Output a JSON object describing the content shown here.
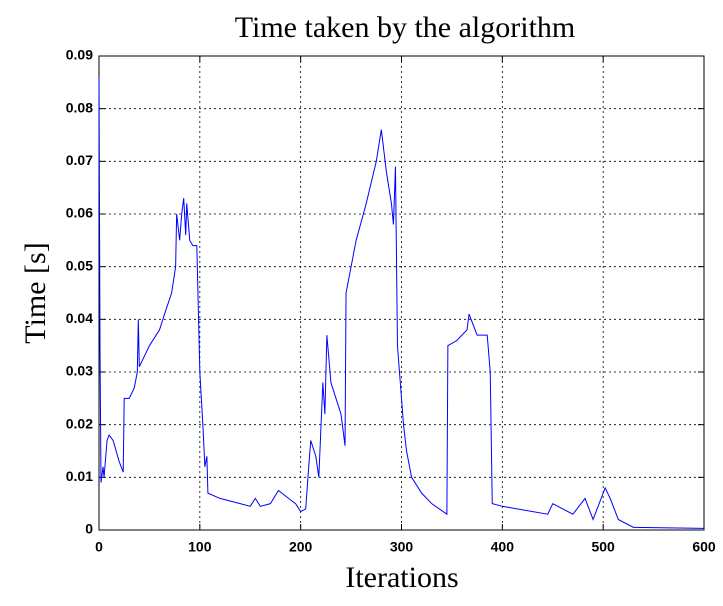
{
  "chart_data": {
    "type": "line",
    "title": "Time taken by the algorithm",
    "xlabel": "Iterations",
    "ylabel": "Time [s]",
    "x": [
      0,
      1,
      2,
      4,
      5,
      8,
      10,
      14,
      17,
      20,
      24,
      25,
      30,
      35,
      38,
      39,
      40,
      45,
      50,
      60,
      65,
      72,
      76,
      77,
      80,
      82,
      84,
      86,
      87,
      90,
      93,
      97,
      100,
      103,
      105,
      107,
      108,
      120,
      140,
      150,
      155,
      160,
      170,
      178,
      188,
      195,
      200,
      205,
      208,
      210,
      215,
      218,
      222,
      224,
      226,
      230,
      235,
      240,
      244,
      245,
      250,
      255,
      265,
      275,
      280,
      285,
      290,
      292,
      294,
      296,
      298,
      302,
      305,
      310,
      320,
      330,
      345,
      346,
      355,
      365,
      367,
      375,
      385,
      388,
      390,
      400,
      445,
      450,
      470,
      482,
      490,
      502,
      507,
      515,
      530,
      600
    ],
    "values": [
      0.086,
      0.034,
      0.009,
      0.012,
      0.01,
      0.017,
      0.018,
      0.017,
      0.015,
      0.013,
      0.011,
      0.025,
      0.025,
      0.027,
      0.03,
      0.04,
      0.031,
      0.033,
      0.035,
      0.038,
      0.041,
      0.045,
      0.05,
      0.06,
      0.055,
      0.06,
      0.063,
      0.056,
      0.062,
      0.055,
      0.054,
      0.054,
      0.03,
      0.02,
      0.012,
      0.014,
      0.007,
      0.006,
      0.005,
      0.0045,
      0.006,
      0.0045,
      0.005,
      0.0075,
      0.006,
      0.005,
      0.0035,
      0.004,
      0.012,
      0.017,
      0.014,
      0.01,
      0.028,
      0.022,
      0.037,
      0.028,
      0.025,
      0.022,
      0.016,
      0.045,
      0.05,
      0.055,
      0.062,
      0.07,
      0.076,
      0.068,
      0.062,
      0.058,
      0.069,
      0.035,
      0.03,
      0.02,
      0.015,
      0.01,
      0.007,
      0.005,
      0.003,
      0.035,
      0.036,
      0.038,
      0.041,
      0.037,
      0.037,
      0.03,
      0.005,
      0.0045,
      0.003,
      0.005,
      0.003,
      0.006,
      0.002,
      0.008,
      0.006,
      0.002,
      0.0005,
      0.0003
    ],
    "color": "#0000ff",
    "xlim": [
      0,
      600
    ],
    "xticks": [
      0,
      100,
      200,
      300,
      400,
      500,
      600
    ],
    "ylim": [
      0,
      0.09
    ],
    "yticks": [
      0,
      0.01,
      0.02,
      0.03,
      0.04,
      0.05,
      0.06,
      0.07,
      0.08,
      0.09
    ],
    "grid": true
  }
}
